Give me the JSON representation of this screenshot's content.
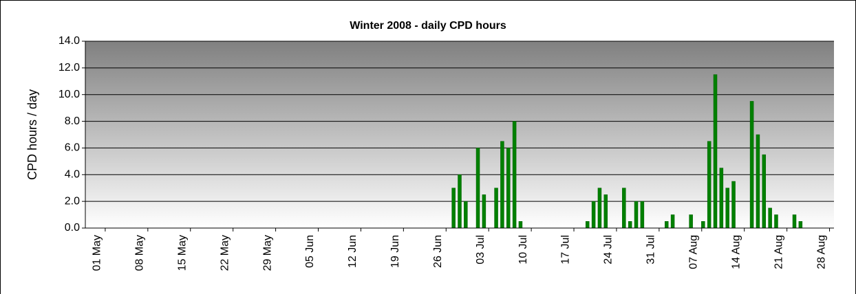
{
  "chart_data": {
    "type": "bar",
    "title": "Winter 2008 - daily CPD hours",
    "ylabel": "CPD hours / day",
    "categories": [
      "01 May",
      null,
      null,
      null,
      null,
      null,
      null,
      "08 May",
      null,
      null,
      null,
      null,
      null,
      null,
      "15 May",
      null,
      null,
      null,
      null,
      null,
      null,
      "22 May",
      null,
      null,
      null,
      null,
      null,
      null,
      "29 May",
      null,
      null,
      null,
      null,
      null,
      null,
      "05 Jun",
      null,
      null,
      null,
      null,
      null,
      null,
      "12 Jun",
      null,
      null,
      null,
      null,
      null,
      null,
      "19 Jun",
      null,
      null,
      null,
      null,
      null,
      null,
      "26 Jun",
      null,
      null,
      null,
      null,
      null,
      null,
      "03 Jul",
      null,
      null,
      null,
      null,
      null,
      null,
      "10 Jul",
      null,
      null,
      null,
      null,
      null,
      null,
      "17 Jul",
      null,
      null,
      null,
      null,
      null,
      null,
      "24 Jul",
      null,
      null,
      null,
      null,
      null,
      null,
      "31 Jul",
      null,
      null,
      null,
      null,
      null,
      null,
      "07 Aug",
      null,
      null,
      null,
      null,
      null,
      null,
      "14 Aug",
      null,
      null,
      null,
      null,
      null,
      null,
      "21 Aug",
      null,
      null,
      null,
      null,
      null,
      null,
      "28 Aug",
      null,
      null,
      null
    ],
    "values": [
      0,
      0,
      0,
      0,
      0,
      0,
      0,
      0,
      0,
      0,
      0,
      0,
      0,
      0,
      0,
      0,
      0,
      0,
      0,
      0,
      0,
      0,
      0,
      0,
      0,
      0,
      0,
      0,
      0,
      0,
      0,
      0,
      0,
      0,
      0,
      0,
      0,
      0,
      0,
      0,
      0,
      0,
      0,
      0,
      0,
      0,
      0,
      0,
      0,
      0,
      0,
      0,
      0,
      0,
      0,
      0,
      0,
      0,
      0,
      0,
      3,
      4,
      2,
      0,
      6,
      2.5,
      0,
      3,
      6.5,
      6,
      8,
      0.5,
      0,
      0,
      0,
      0,
      0,
      0,
      0,
      0,
      0,
      0,
      0.5,
      2,
      3,
      2.5,
      0,
      0,
      3,
      0.5,
      2,
      2,
      0,
      0,
      0,
      0.5,
      1,
      0,
      0,
      1,
      0,
      0.5,
      6.5,
      11.5,
      4.5,
      3,
      3.5,
      0,
      0,
      9.5,
      7,
      5.5,
      1.5,
      1,
      0,
      0,
      1,
      0.5,
      0,
      0,
      0,
      0,
      0
    ],
    "color": "#008000",
    "ylim": [
      0,
      14
    ],
    "yticks": [
      {
        "value": 0,
        "label": "0.0"
      },
      {
        "value": 2,
        "label": "2.0"
      },
      {
        "value": 4,
        "label": "4.0"
      },
      {
        "value": 6,
        "label": "6.0"
      },
      {
        "value": 8,
        "label": "8.0"
      },
      {
        "value": 10,
        "label": "10.0"
      },
      {
        "value": 12,
        "label": "12.0"
      },
      {
        "value": 14,
        "label": "14.0"
      }
    ],
    "grid": true
  }
}
